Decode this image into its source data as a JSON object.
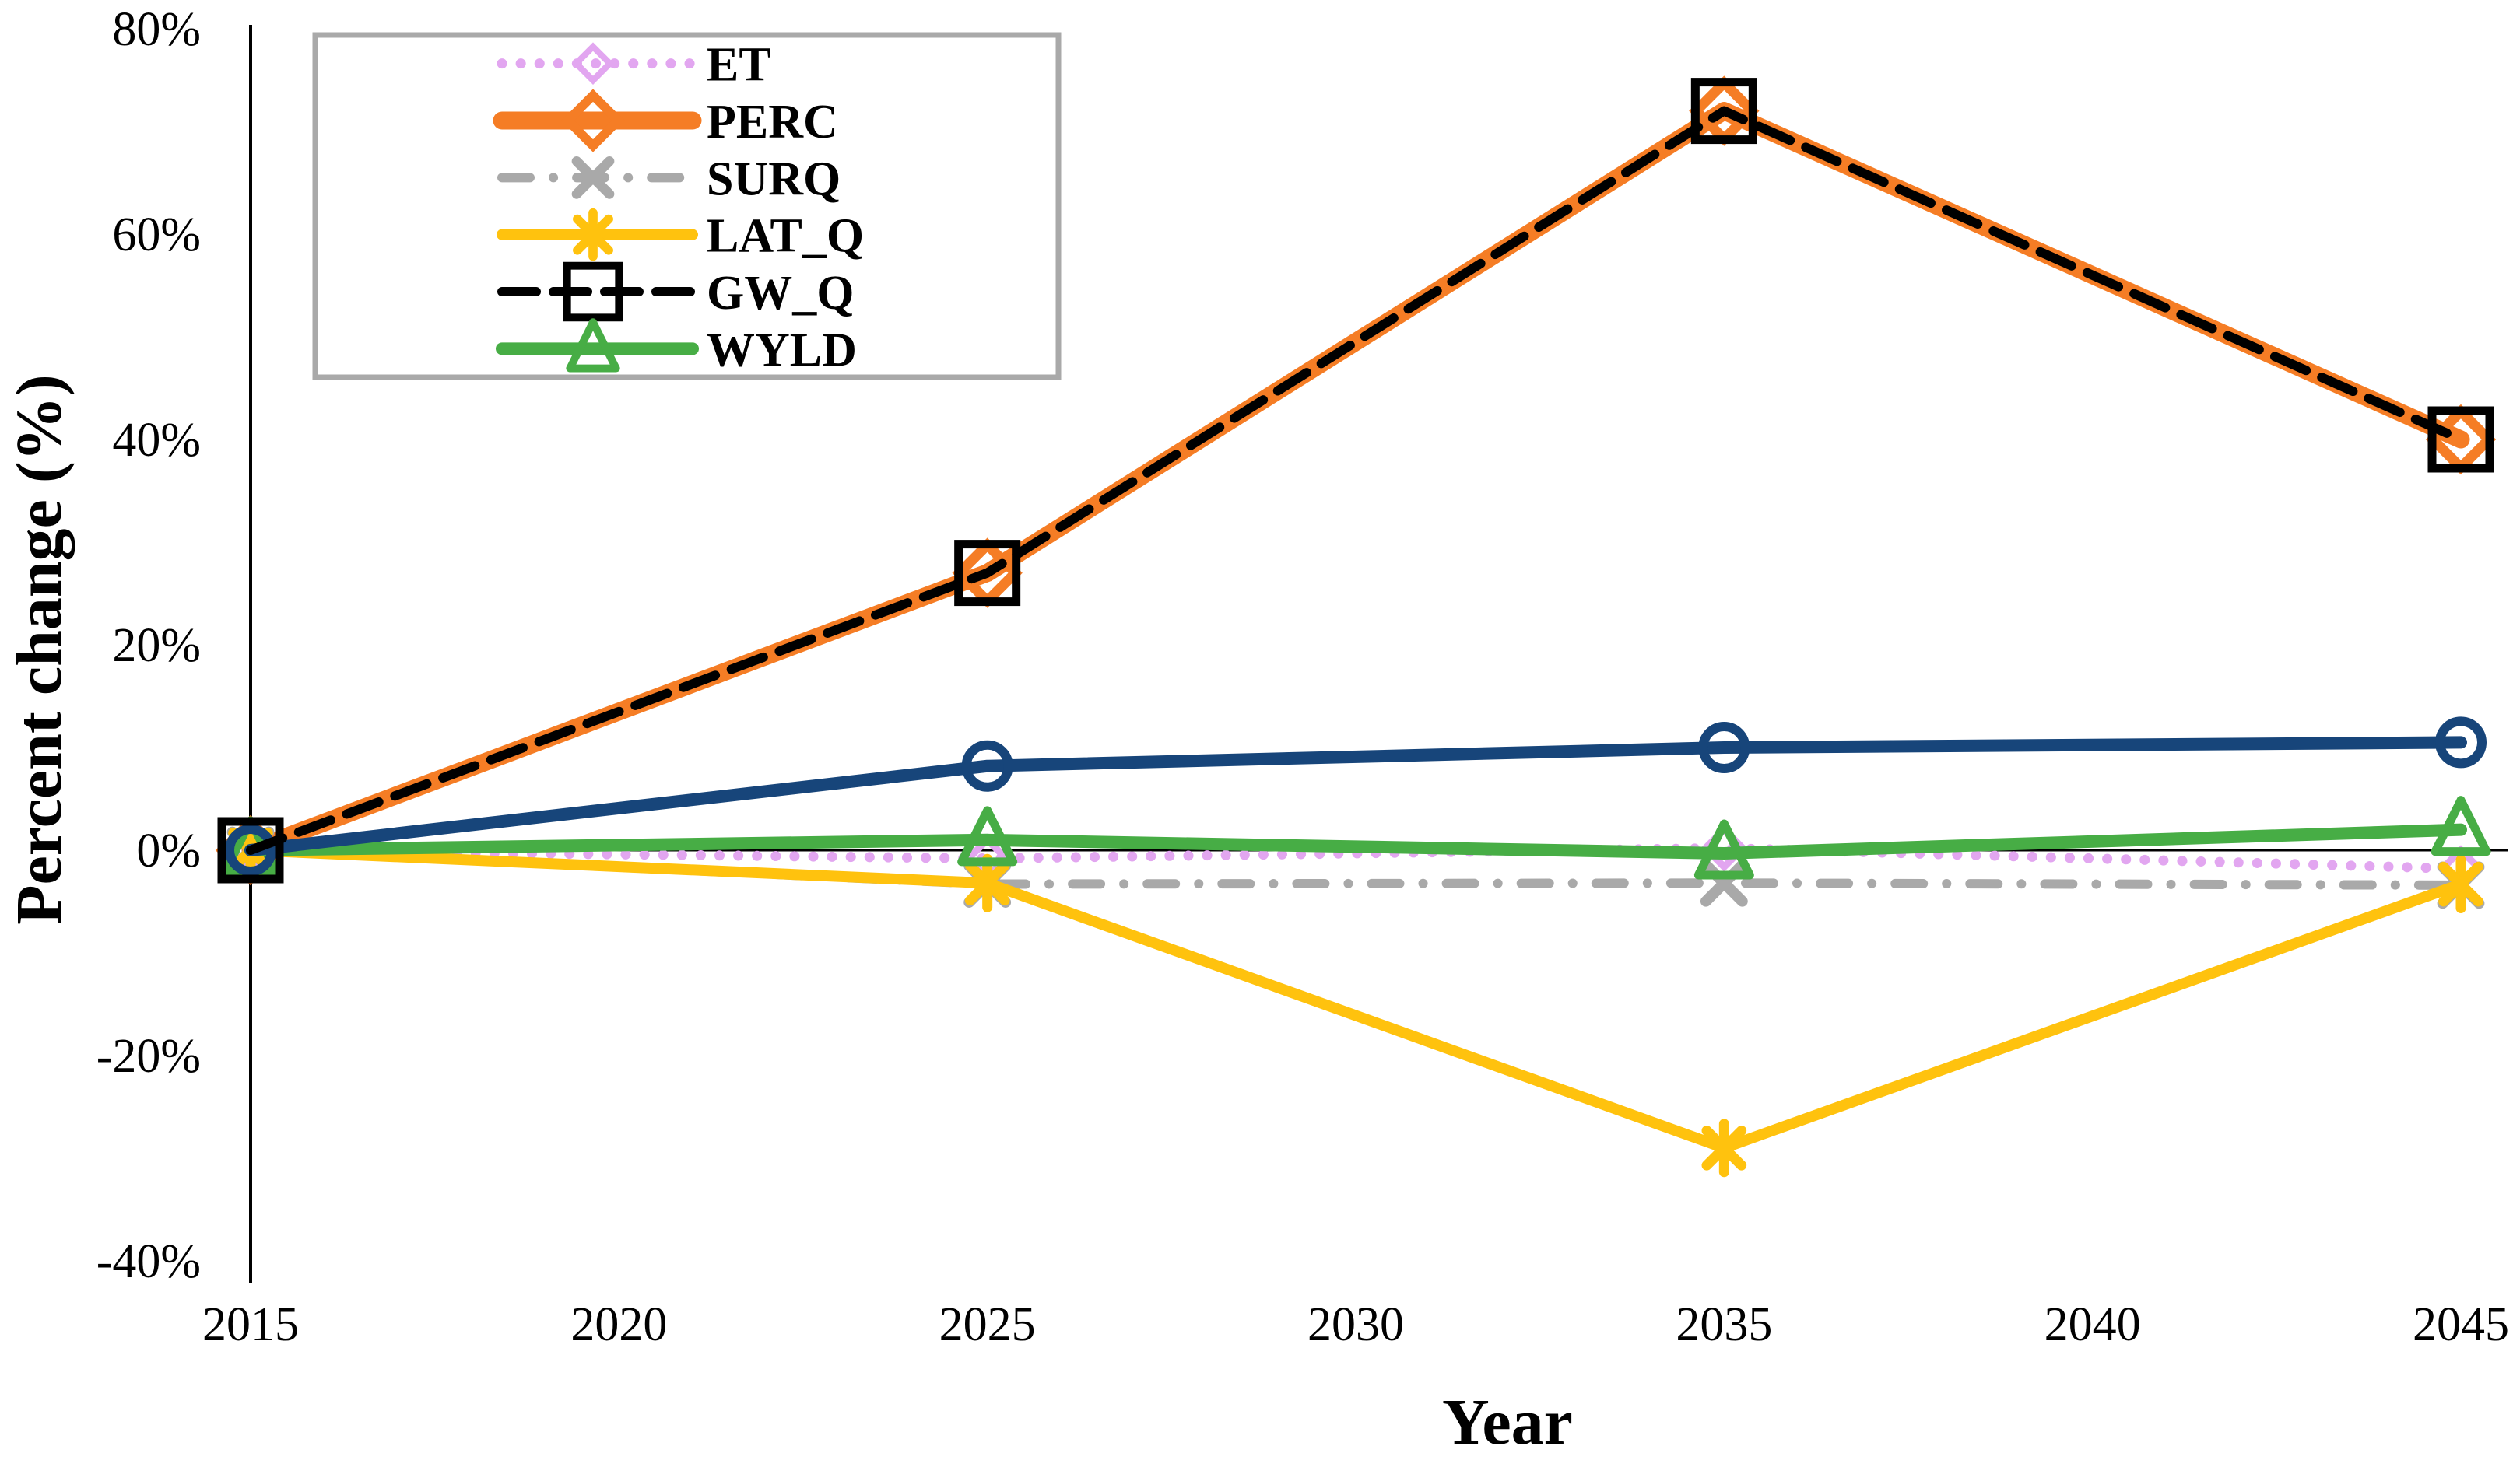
{
  "chart_data": {
    "type": "line",
    "x": [
      2015,
      2025,
      2035,
      2045
    ],
    "x_ticks": [
      "2015",
      "2020",
      "2025",
      "2030",
      "2035",
      "2040",
      "2045"
    ],
    "y_ticks": [
      "80%",
      "60%",
      "40%",
      "20%",
      "0%",
      "-20%",
      "-40%"
    ],
    "xlim": [
      2015,
      2045
    ],
    "ylim": [
      -40,
      80
    ],
    "xlabel": "Year",
    "ylabel": "Percent change (%)",
    "grid": false,
    "legend_position": "top-left",
    "axis_color": "#000000",
    "legend_border_color": "#A9A9A9",
    "series": [
      {
        "name": "ET",
        "values": [
          0,
          -0.8,
          0.2,
          -1.8
        ],
        "color": "#E2A6F0",
        "line": "dotted",
        "marker": "open-diamond",
        "width": 13,
        "in_legend": true
      },
      {
        "name": "PERC",
        "values": [
          0,
          27,
          72,
          40
        ],
        "color": "#F57D25",
        "line": "solid",
        "marker": "open-diamond",
        "width": 23,
        "in_legend": true
      },
      {
        "name": "SURQ",
        "values": [
          0,
          -3.3,
          -3.2,
          -3.4
        ],
        "color": "#A9A9A9",
        "line": "dash-dot",
        "marker": "x",
        "width": 12,
        "in_legend": true
      },
      {
        "name": "LAT_Q",
        "values": [
          0,
          -3.2,
          -29,
          -3.3
        ],
        "color": "#FFC20E",
        "line": "solid",
        "marker": "asterisk",
        "width": 14,
        "in_legend": true
      },
      {
        "name": "GW_Q",
        "values": [
          0,
          27,
          72,
          40
        ],
        "color": "#000000",
        "line": "dashed",
        "marker": "open-square",
        "width": 12,
        "in_legend": true
      },
      {
        "name": "WYLD",
        "values": [
          0,
          1,
          -0.3,
          2
        ],
        "color": "#47AD45",
        "line": "solid",
        "marker": "open-triangle",
        "width": 16,
        "in_legend": true
      },
      {
        "name": "",
        "values": [
          0,
          8.2,
          10,
          10.5
        ],
        "color": "#17457A",
        "line": "solid",
        "marker": "open-circle",
        "width": 16,
        "in_legend": false
      }
    ]
  }
}
